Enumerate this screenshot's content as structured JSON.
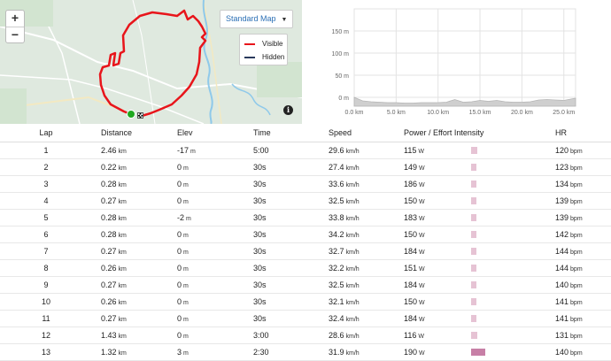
{
  "map": {
    "zoom_in": "+",
    "zoom_out": "−",
    "map_type": "Standard Map",
    "legend": {
      "visible_label": "Visible",
      "visible_color": "#e8151b",
      "hidden_label": "Hidden",
      "hidden_color": "#2a3a5c"
    },
    "info": "i",
    "route_color": "#e8151b",
    "start_color": "#1fa81f",
    "terrain": {
      "background": "#dfe9df",
      "river": "#8fc9ea",
      "roads": "#ffffff"
    }
  },
  "chart_data": {
    "type": "area",
    "x": [
      0,
      1,
      2,
      3,
      4,
      5,
      6,
      7,
      8,
      9,
      10,
      11,
      12,
      13,
      14,
      15,
      16,
      17,
      18,
      19,
      20,
      21,
      22,
      23,
      24,
      25,
      26.4
    ],
    "values": [
      0,
      -8,
      -10,
      -11,
      -12,
      -12,
      -13,
      -13,
      -12,
      -12,
      -12,
      -11,
      -5,
      -11,
      -10,
      -7,
      -9,
      -7,
      -10,
      -11,
      -11,
      -10,
      -6,
      -5,
      -6,
      -7,
      -2
    ],
    "xlim": [
      0,
      26.4
    ],
    "ylim": [
      -20,
      160
    ],
    "xticks": [
      "0.0 km",
      "5.0 km",
      "10.0 km",
      "15.0 km",
      "20.0 km",
      "25.0 km"
    ],
    "xtick_values": [
      0,
      5,
      10,
      15,
      20,
      25
    ],
    "yticks": [
      "150 m",
      "100 m",
      "50 m",
      "0 m"
    ],
    "ytick_values": [
      150,
      100,
      50,
      0
    ],
    "grid": true,
    "fill_color": "#cfcfcf",
    "line_color": "#b5b5b5"
  },
  "table": {
    "headers": {
      "lap": "Lap",
      "distance": "Distance",
      "elev": "Elev",
      "time": "Time",
      "speed": "Speed",
      "power": "Power / Effort Intensity",
      "hr": "HR"
    },
    "units": {
      "distance": "km",
      "elev": "m",
      "speed": "km/h",
      "power": "W",
      "hr": "bpm"
    },
    "bar_color": "#e6c3d4",
    "rows": [
      {
        "lap": "1",
        "distance": "2.46",
        "elev": "-17",
        "time": "5:00",
        "speed": "29.6",
        "power": "115",
        "intensity": 0.35,
        "hr": "120"
      },
      {
        "lap": "2",
        "distance": "0.22",
        "elev": "0",
        "time": "30s",
        "speed": "27.4",
        "power": "149",
        "intensity": 0.3,
        "hr": "123"
      },
      {
        "lap": "3",
        "distance": "0.28",
        "elev": "0",
        "time": "30s",
        "speed": "33.6",
        "power": "186",
        "intensity": 0.3,
        "hr": "134"
      },
      {
        "lap": "4",
        "distance": "0.27",
        "elev": "0",
        "time": "30s",
        "speed": "32.5",
        "power": "150",
        "intensity": 0.3,
        "hr": "139"
      },
      {
        "lap": "5",
        "distance": "0.28",
        "elev": "-2",
        "time": "30s",
        "speed": "33.8",
        "power": "183",
        "intensity": 0.3,
        "hr": "139"
      },
      {
        "lap": "6",
        "distance": "0.28",
        "elev": "0",
        "time": "30s",
        "speed": "34.2",
        "power": "150",
        "intensity": 0.3,
        "hr": "142"
      },
      {
        "lap": "7",
        "distance": "0.27",
        "elev": "0",
        "time": "30s",
        "speed": "32.7",
        "power": "184",
        "intensity": 0.3,
        "hr": "144"
      },
      {
        "lap": "8",
        "distance": "0.26",
        "elev": "0",
        "time": "30s",
        "speed": "32.2",
        "power": "151",
        "intensity": 0.3,
        "hr": "144"
      },
      {
        "lap": "9",
        "distance": "0.27",
        "elev": "0",
        "time": "30s",
        "speed": "32.5",
        "power": "184",
        "intensity": 0.3,
        "hr": "140"
      },
      {
        "lap": "10",
        "distance": "0.26",
        "elev": "0",
        "time": "30s",
        "speed": "32.1",
        "power": "150",
        "intensity": 0.3,
        "hr": "141"
      },
      {
        "lap": "11",
        "distance": "0.27",
        "elev": "0",
        "time": "30s",
        "speed": "32.4",
        "power": "184",
        "intensity": 0.3,
        "hr": "141"
      },
      {
        "lap": "12",
        "distance": "1.43",
        "elev": "0",
        "time": "3:00",
        "speed": "28.6",
        "power": "116",
        "intensity": 0.35,
        "hr": "131"
      },
      {
        "lap": "13",
        "distance": "1.32",
        "elev": "3",
        "time": "2:30",
        "speed": "31.9",
        "power": "190",
        "intensity": 0.8,
        "hr": "140"
      }
    ]
  }
}
